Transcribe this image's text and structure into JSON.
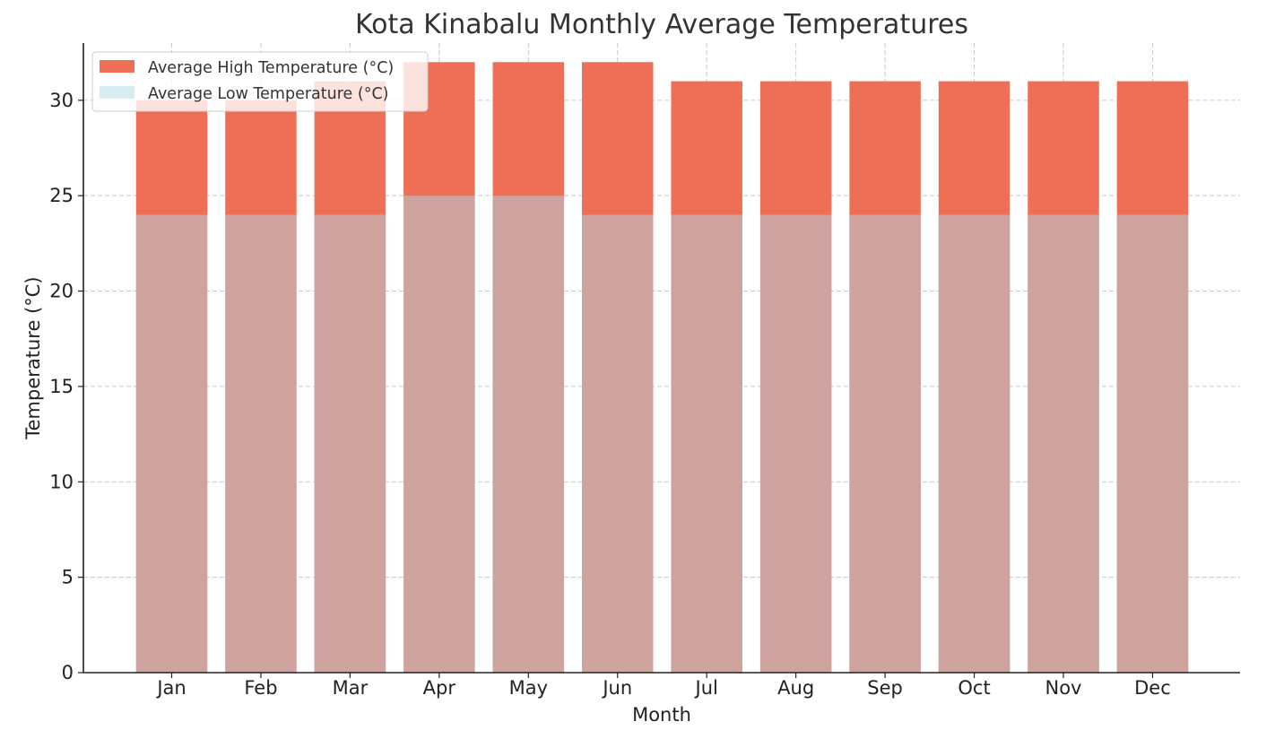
{
  "chart_data": {
    "type": "bar",
    "title": "Kota Kinabalu Monthly Average Temperatures",
    "xlabel": "Month",
    "ylabel": "Temperature (°C)",
    "ylim": [
      0,
      33
    ],
    "yticks": [
      0,
      5,
      10,
      15,
      20,
      25,
      30
    ],
    "grid": true,
    "legend_position": "top-left",
    "categories": [
      "Jan",
      "Feb",
      "Mar",
      "Apr",
      "May",
      "Jun",
      "Jul",
      "Aug",
      "Sep",
      "Oct",
      "Nov",
      "Dec"
    ],
    "series": [
      {
        "name": "Average High Temperature (°C)",
        "color": "#ee6f55",
        "values": [
          30,
          30,
          31,
          32,
          32,
          32,
          31,
          31,
          31,
          31,
          31,
          31
        ]
      },
      {
        "name": "Average Low Temperature (°C)",
        "color": "#add8e6",
        "opacity": 0.5,
        "values": [
          24,
          24,
          24,
          25,
          25,
          24,
          24,
          24,
          24,
          24,
          24,
          24
        ]
      }
    ]
  }
}
